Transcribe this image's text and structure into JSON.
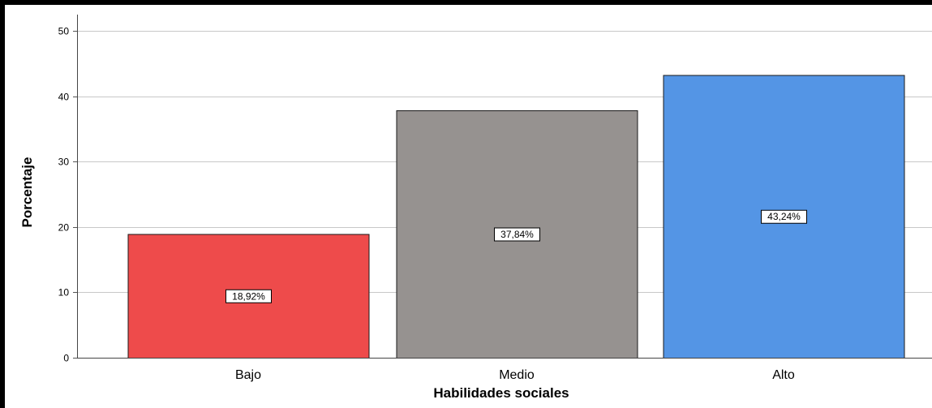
{
  "chart_data": {
    "type": "bar",
    "categories": [
      "Bajo",
      "Medio",
      "Alto"
    ],
    "values": [
      18.92,
      37.84,
      43.24
    ],
    "data_labels": [
      "18,92%",
      "37,84%",
      "43,24%"
    ],
    "colors": [
      "#ee4b4b",
      "#969290",
      "#5495e5"
    ],
    "bar_outline": "#1a1a1a",
    "gridline_color": "#c8c8c8",
    "xlabel": "Habilidades sociales",
    "ylabel": "Porcentaje",
    "ylim": [
      0,
      50
    ],
    "yticks": [
      0,
      10,
      20,
      30,
      40,
      50
    ],
    "grid": true
  }
}
